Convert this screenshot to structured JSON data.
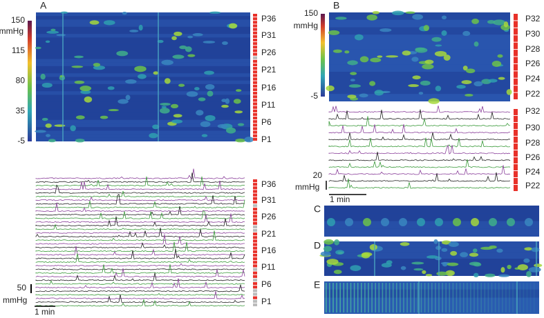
{
  "panels": [
    {
      "letter": "A",
      "colorbar": {
        "labels": [
          "150",
          "115",
          "80",
          "35",
          "-5"
        ],
        "unit": "mmHg"
      },
      "heatmap_channels": [
        "P36",
        "P31",
        "P26",
        "P21",
        "P16",
        "P11",
        "P6",
        "P1"
      ],
      "trace_channels": [
        "P36",
        "P31",
        "P26",
        "P21",
        "P16",
        "P11",
        "P6",
        "P1"
      ],
      "scale": {
        "amplitude": "50",
        "unit": "mmHg",
        "time": "1 min"
      }
    },
    {
      "letter": "B",
      "colorbar": {
        "labels": [
          "150",
          "-5"
        ],
        "unit": "mmHg"
      },
      "heatmap_channels": [
        "P32",
        "P30",
        "P28",
        "P26",
        "P24",
        "P22"
      ],
      "trace_channels": [
        "P32",
        "P30",
        "P28",
        "P26",
        "P24",
        "P22"
      ],
      "scale": {
        "amplitude": "20",
        "unit": "mmHg",
        "time": "1 min"
      }
    },
    {
      "letter": "C"
    },
    {
      "letter": "D"
    },
    {
      "letter": "E"
    }
  ]
}
